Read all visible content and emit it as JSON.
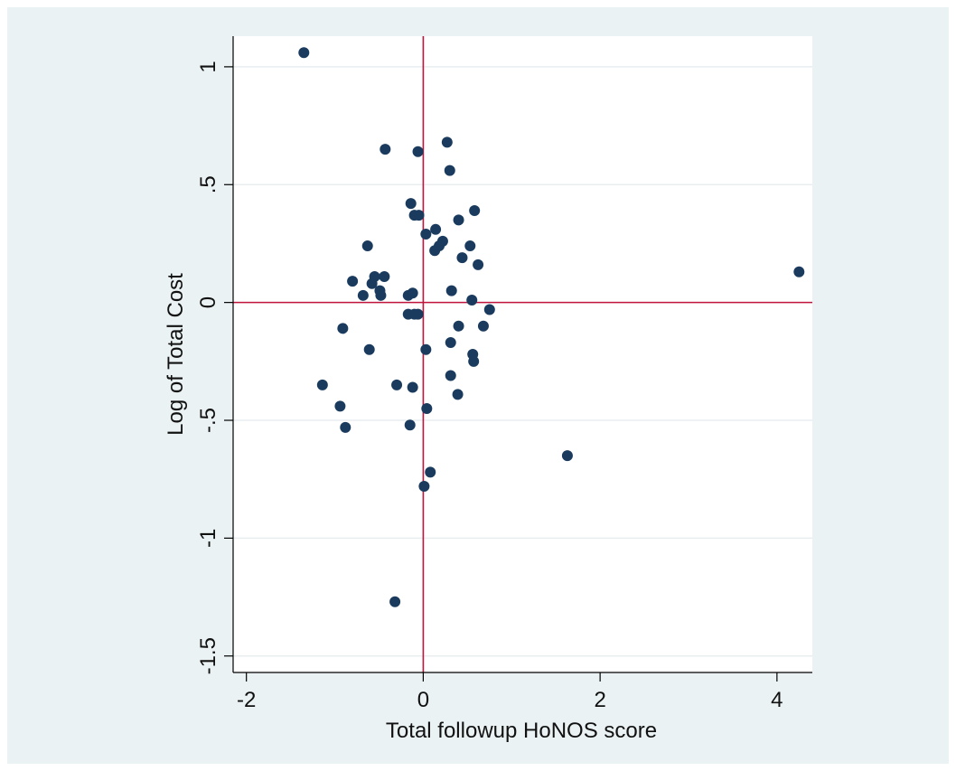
{
  "chart_data": {
    "type": "scatter",
    "xlabel": "Total followup HoNOS score",
    "ylabel": "Log of Total Cost",
    "xlim": [
      -2.15,
      4.4
    ],
    "ylim": [
      -1.57,
      1.13
    ],
    "x_ticks": [
      -2,
      0,
      2,
      4
    ],
    "x_tick_labels": [
      "-2",
      "0",
      "2",
      "4"
    ],
    "y_ticks": [
      -1.5,
      -1,
      -0.5,
      0,
      0.5,
      1
    ],
    "y_tick_labels": [
      "-1.5",
      "-1",
      "-.5",
      "0",
      ".5",
      "1"
    ],
    "reference_lines": {
      "x": 0,
      "y": 0
    },
    "grid": "horizontal",
    "colors": {
      "marker": "#1a3b5e",
      "reference": "#c0143c",
      "grid": "#e8eef0",
      "outer_background": "#eaf2f3",
      "plot_background": "#ffffff"
    },
    "points": [
      {
        "x": -1.35,
        "y": 1.06
      },
      {
        "x": -0.43,
        "y": 0.65
      },
      {
        "x": -0.06,
        "y": 0.64
      },
      {
        "x": 0.27,
        "y": 0.68
      },
      {
        "x": 0.3,
        "y": 0.56
      },
      {
        "x": -0.14,
        "y": 0.42
      },
      {
        "x": -0.1,
        "y": 0.37
      },
      {
        "x": -0.05,
        "y": 0.37
      },
      {
        "x": 0.4,
        "y": 0.35
      },
      {
        "x": 0.58,
        "y": 0.39
      },
      {
        "x": 0.14,
        "y": 0.31
      },
      {
        "x": 0.03,
        "y": 0.29
      },
      {
        "x": 0.22,
        "y": 0.26
      },
      {
        "x": 0.18,
        "y": 0.24
      },
      {
        "x": 0.13,
        "y": 0.22
      },
      {
        "x": -0.63,
        "y": 0.24
      },
      {
        "x": 0.53,
        "y": 0.24
      },
      {
        "x": 0.44,
        "y": 0.19
      },
      {
        "x": 0.62,
        "y": 0.16
      },
      {
        "x": -0.55,
        "y": 0.11
      },
      {
        "x": -0.44,
        "y": 0.11
      },
      {
        "x": -0.8,
        "y": 0.09
      },
      {
        "x": -0.58,
        "y": 0.08
      },
      {
        "x": -0.49,
        "y": 0.05
      },
      {
        "x": -0.68,
        "y": 0.03
      },
      {
        "x": -0.48,
        "y": 0.03
      },
      {
        "x": -0.17,
        "y": 0.03
      },
      {
        "x": -0.12,
        "y": 0.04
      },
      {
        "x": 0.32,
        "y": 0.05
      },
      {
        "x": 0.55,
        "y": 0.01
      },
      {
        "x": 0.75,
        "y": -0.03
      },
      {
        "x": -0.17,
        "y": -0.05
      },
      {
        "x": -0.1,
        "y": -0.05
      },
      {
        "x": -0.06,
        "y": -0.05
      },
      {
        "x": -0.91,
        "y": -0.11
      },
      {
        "x": 0.4,
        "y": -0.1
      },
      {
        "x": 0.68,
        "y": -0.1
      },
      {
        "x": 0.31,
        "y": -0.17
      },
      {
        "x": -0.61,
        "y": -0.2
      },
      {
        "x": 0.03,
        "y": -0.2
      },
      {
        "x": 0.56,
        "y": -0.22
      },
      {
        "x": 0.57,
        "y": -0.25
      },
      {
        "x": 0.31,
        "y": -0.31
      },
      {
        "x": -1.14,
        "y": -0.35
      },
      {
        "x": -0.3,
        "y": -0.35
      },
      {
        "x": -0.12,
        "y": -0.36
      },
      {
        "x": 0.39,
        "y": -0.39
      },
      {
        "x": -0.94,
        "y": -0.44
      },
      {
        "x": 0.04,
        "y": -0.45
      },
      {
        "x": -0.88,
        "y": -0.53
      },
      {
        "x": -0.15,
        "y": -0.52
      },
      {
        "x": 1.63,
        "y": -0.65
      },
      {
        "x": 0.08,
        "y": -0.72
      },
      {
        "x": 0.01,
        "y": -0.78
      },
      {
        "x": -0.32,
        "y": -1.27
      },
      {
        "x": 4.25,
        "y": 0.13
      }
    ]
  }
}
